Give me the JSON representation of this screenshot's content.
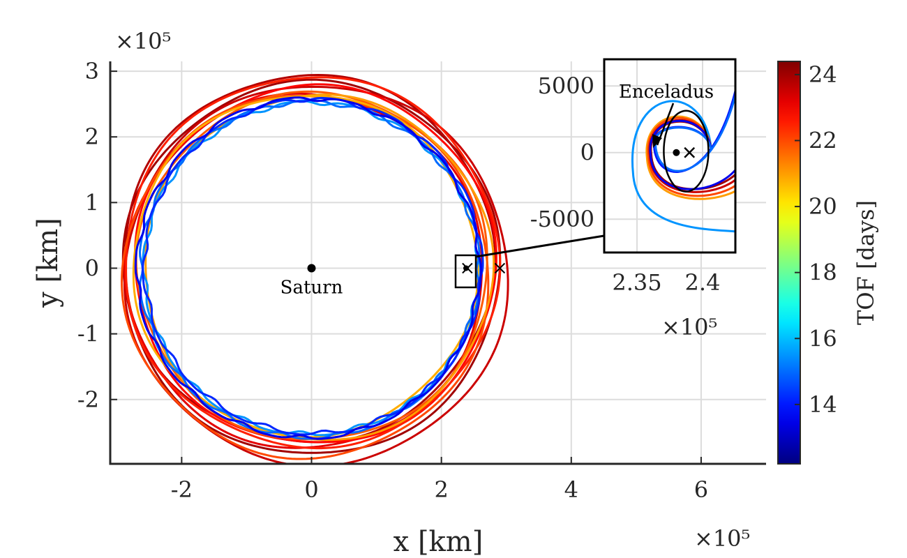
{
  "chart_data": [
    {
      "type": "line",
      "role": "main",
      "xlabel": "x [km]",
      "ylabel": "y [km]",
      "x_exponent": "×10⁵",
      "y_exponent": "×10⁵",
      "xlim": [
        -3.1,
        7.0
      ],
      "ylim": [
        -2.98,
        3.15
      ],
      "xticks": [
        -2,
        0,
        2,
        4,
        6
      ],
      "xtick_labels": [
        "-2",
        "0",
        "2",
        "4",
        "6"
      ],
      "yticks": [
        -2,
        -1,
        0,
        1,
        2,
        3
      ],
      "ytick_labels": [
        "-2",
        "-1",
        "0",
        "1",
        "2",
        "3"
      ],
      "grid": true,
      "annotations": [
        {
          "label": "Saturn",
          "x": 0,
          "y": 0,
          "marker": "dot"
        },
        {
          "label": "",
          "x": 2.38,
          "y": 0,
          "marker": "dot"
        },
        {
          "label": "",
          "x": 2.4,
          "y": 0,
          "marker": "cross"
        },
        {
          "label": "",
          "x": 2.9,
          "y": 0,
          "marker": "cross"
        }
      ],
      "series": [
        {
          "tof": 24.0,
          "center": [
            0,
            0
          ],
          "r": 2.9,
          "x_min": -3.0,
          "x_max": 2.9
        },
        {
          "tof": 23.8,
          "center": [
            -0.05,
            0.15
          ],
          "r": 2.85
        },
        {
          "tof": 23.5,
          "center": [
            0.08,
            -0.1
          ],
          "r": 2.95
        },
        {
          "tof": 23.2,
          "center": [
            -0.1,
            -0.05
          ],
          "r": 2.75
        },
        {
          "tof": 22.8,
          "center": [
            0.05,
            0.05
          ],
          "r": 2.78
        },
        {
          "tof": 22.5,
          "center": [
            0.0,
            0.1
          ],
          "r": 2.88
        },
        {
          "tof": 22.0,
          "center": [
            -0.08,
            -0.12
          ],
          "r": 2.82
        },
        {
          "tof": 21.8,
          "center": [
            0.02,
            0.02
          ],
          "r": 2.7
        },
        {
          "tof": 21.0,
          "center": [
            0.1,
            0.0
          ],
          "r": 2.68
        },
        {
          "tof": 20.8,
          "center": [
            -0.1,
            0.05
          ],
          "r": 2.65
        },
        {
          "tof": 15.5,
          "center": [
            0.0,
            0.0
          ],
          "r": 2.6
        },
        {
          "tof": 15.0,
          "center": [
            -0.03,
            -0.02
          ],
          "r": 2.63
        },
        {
          "tof": 14.2,
          "center": [
            0.02,
            0.03
          ],
          "r": 2.62
        },
        {
          "tof": 13.5,
          "center": [
            -0.05,
            0.0
          ],
          "r": 2.66
        }
      ]
    },
    {
      "type": "line",
      "role": "inset",
      "x_exponent": "×10⁵",
      "xlim": [
        2.325,
        2.425
      ],
      "ylim": [
        -7500,
        7000
      ],
      "xticks": [
        2.35,
        2.4
      ],
      "xtick_labels": [
        "2.35",
        "2.4"
      ],
      "yticks": [
        -5000,
        0,
        5000
      ],
      "ytick_labels": [
        "-5000",
        "0",
        "5000"
      ],
      "grid": true,
      "annotations": [
        {
          "label": "Enceladus",
          "x": 2.38,
          "y": 0,
          "marker": "dot"
        },
        {
          "label": "",
          "x": 2.39,
          "y": 0,
          "marker": "cross"
        }
      ]
    }
  ],
  "colorbar": {
    "label": "TOF [days]",
    "range": [
      12.2,
      24.4
    ],
    "ticks": [
      14,
      16,
      18,
      20,
      22,
      24
    ],
    "tick_labels": [
      "14",
      "16",
      "18",
      "20",
      "22",
      "24"
    ],
    "colormap": "jet"
  }
}
